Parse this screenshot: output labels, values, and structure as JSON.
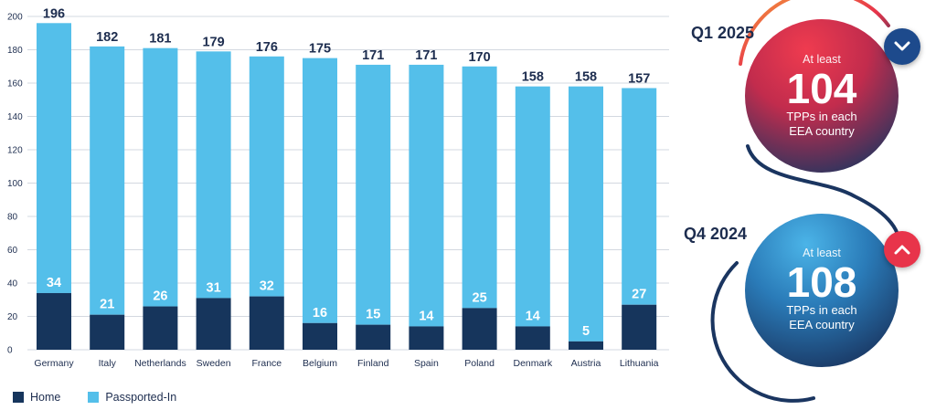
{
  "chart_data": {
    "type": "bar",
    "stacked": true,
    "categories": [
      "Germany",
      "Italy",
      "Netherlands",
      "Sweden",
      "France",
      "Belgium",
      "Finland",
      "Spain",
      "Poland",
      "Denmark",
      "Austria",
      "Lithuania"
    ],
    "series": [
      {
        "name": "Home",
        "values": [
          34,
          21,
          26,
          31,
          32,
          16,
          15,
          14,
          25,
          14,
          5,
          27
        ],
        "color": "#16355c"
      },
      {
        "name": "Passported-In",
        "values": [
          162,
          161,
          155,
          148,
          144,
          159,
          156,
          157,
          145,
          144,
          153,
          130
        ],
        "color": "#54bfea"
      }
    ],
    "home_labels": [
      34,
      21,
      26,
      31,
      32,
      16,
      15,
      14,
      25,
      14,
      5,
      27
    ],
    "totals": [
      196,
      182,
      181,
      179,
      176,
      175,
      171,
      171,
      170,
      158,
      158,
      157
    ],
    "ylim": [
      0,
      200
    ],
    "yticks": [
      0,
      20,
      40,
      60,
      80,
      100,
      120,
      140,
      160,
      180,
      200
    ],
    "grid": true,
    "legend_position": "bottom-left"
  },
  "legend": {
    "home": "Home",
    "passported": "Passported-In"
  },
  "q1": {
    "label": "Q1 2025",
    "prefix": "At least",
    "value": "104",
    "line1": "TPPs in each",
    "line2": "EEA country",
    "badge_icon": "chevron-down-icon"
  },
  "q4": {
    "label": "Q4 2024",
    "prefix": "At least",
    "value": "108",
    "line1": "TPPs in each",
    "line2": "EEA country",
    "badge_icon": "chevron-up-icon"
  },
  "colors": {
    "home": "#16355c",
    "passported": "#54bfea",
    "grid": "#d3d8e0",
    "text": "#1d2d4f",
    "q1_circle_top": "#e8344a",
    "q1_circle_bottom": "#1a3560",
    "q4_circle_top": "#3aa6de",
    "q4_circle_bottom": "#1a3560",
    "badge_down": "#1d4a8c",
    "badge_up": "#e8344a"
  }
}
